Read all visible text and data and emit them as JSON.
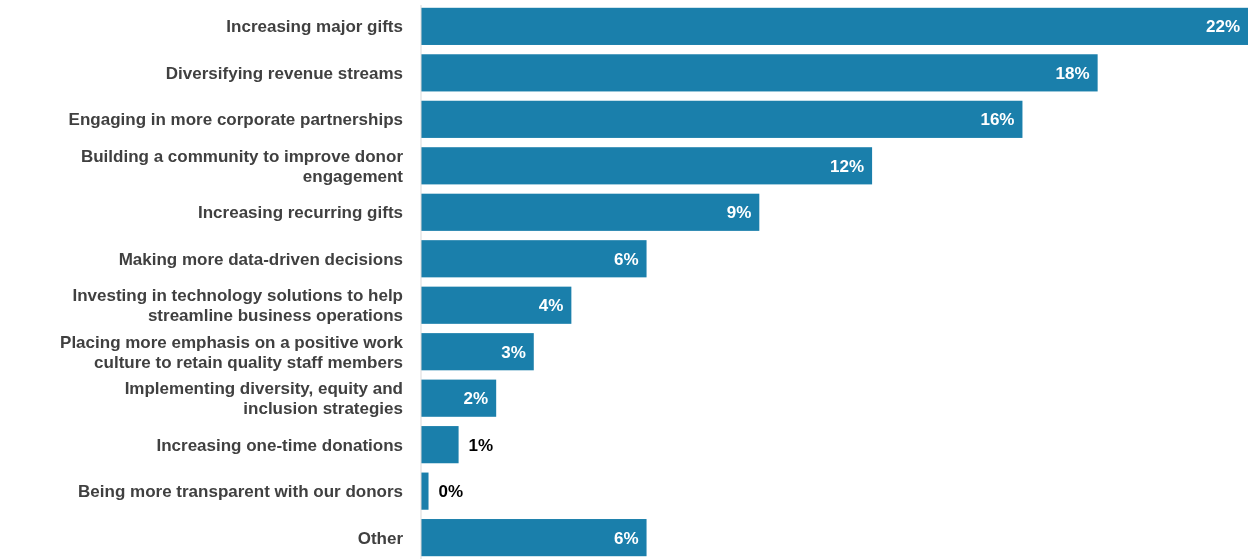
{
  "chart_data": {
    "type": "bar",
    "orientation": "horizontal",
    "categories": [
      "Increasing major gifts",
      "Diversifying revenue streams",
      "Engaging in more corporate partnerships",
      "Building a community to improve donor engagement",
      "Increasing recurring gifts",
      "Making more data-driven decisions",
      "Investing in technology solutions to help streamline business operations",
      "Placing more emphasis on a positive work culture to retain quality staff members",
      "Implementing diversity, equity and inclusion strategies",
      "Increasing one-time donations",
      "Being more transparent with our donors",
      "Other"
    ],
    "values": [
      22,
      18,
      16,
      12,
      9,
      6,
      4,
      3,
      2,
      1,
      0.2,
      6
    ],
    "value_labels": [
      "22%",
      "18%",
      "16%",
      "12%",
      "9%",
      "6%",
      "4%",
      "3%",
      "2%",
      "1%",
      "0%",
      "6%"
    ],
    "color": "#1a7fab"
  }
}
